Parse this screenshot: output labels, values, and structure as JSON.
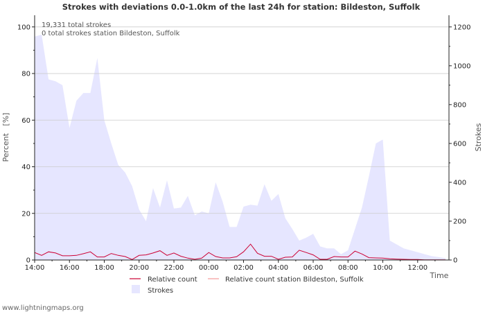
{
  "chart_data": {
    "type": "area",
    "title": "Strokes with deviations 0.0-1.0km of the last 24h for station: Bildeston, Suffolk",
    "xlabel": "Time",
    "ylabel_left": "Percent   [%]",
    "ylabel_right": "Strokes",
    "y_left_range": [
      0,
      105
    ],
    "y_right_range": [
      0,
      1260
    ],
    "left_ticks": [
      0,
      20,
      40,
      60,
      80,
      100
    ],
    "right_ticks": [
      0,
      200,
      400,
      600,
      800,
      1000,
      1200
    ],
    "x_range_hours": [
      14,
      37.8
    ],
    "x_tick_labels": [
      "14:00",
      "16:00",
      "18:00",
      "20:00",
      "22:00",
      "00:00",
      "02:00",
      "04:00",
      "06:00",
      "08:00",
      "10:00",
      "12:00"
    ],
    "annotations": [
      "19,331 total strokes",
      "0 total strokes station Bildeston, Suffolk"
    ],
    "legend": [
      "Relative count",
      "Relative count station Bildeston, Suffolk",
      "Strokes"
    ],
    "colors": {
      "strokes_fill": "#e6e6ff",
      "relative": "#cc0033",
      "relative_station": "#f59999",
      "grid": "#cccccc",
      "axis": "#222222"
    },
    "x_hours": [
      14.0,
      14.4,
      14.8,
      15.2,
      15.6,
      16.0,
      16.4,
      16.8,
      17.2,
      17.6,
      18.0,
      18.4,
      18.8,
      19.2,
      19.6,
      20.0,
      20.4,
      20.8,
      21.2,
      21.6,
      22.0,
      22.4,
      22.8,
      23.2,
      23.6,
      24.0,
      24.4,
      24.8,
      25.2,
      25.6,
      26.0,
      26.4,
      26.8,
      27.2,
      27.6,
      28.0,
      28.4,
      28.8,
      29.2,
      29.6,
      30.0,
      30.4,
      30.8,
      31.2,
      31.6,
      32.0,
      32.4,
      32.8,
      33.2,
      33.6,
      34.0,
      34.4,
      34.8,
      35.2,
      35.6,
      36.0,
      36.4,
      36.8,
      37.2,
      37.6
    ],
    "series": [
      {
        "name": "Strokes",
        "axis": "right",
        "values": [
          1150,
          1160,
          930,
          920,
          900,
          680,
          820,
          860,
          860,
          1040,
          720,
          600,
          490,
          450,
          380,
          260,
          200,
          370,
          270,
          410,
          265,
          270,
          330,
          230,
          250,
          240,
          400,
          300,
          170,
          170,
          275,
          285,
          280,
          390,
          305,
          340,
          215,
          160,
          100,
          115,
          135,
          70,
          60,
          60,
          30,
          50,
          160,
          270,
          430,
          600,
          620,
          100,
          80,
          60,
          50,
          40,
          30,
          20,
          15,
          10
        ]
      },
      {
        "name": "Relative count",
        "axis": "left",
        "values": [
          3.2,
          2.0,
          3.5,
          3.0,
          1.8,
          1.8,
          2.0,
          2.7,
          3.5,
          1.3,
          1.3,
          2.8,
          2.0,
          1.5,
          0.2,
          2.0,
          2.2,
          3.0,
          4.0,
          2.0,
          3.0,
          1.6,
          0.8,
          0.3,
          0.8,
          3.2,
          1.5,
          0.9,
          0.9,
          1.4,
          3.5,
          6.8,
          2.9,
          1.6,
          1.6,
          0.3,
          1.2,
          1.3,
          4.2,
          3.2,
          2.2,
          0.3,
          0.3,
          1.5,
          1.3,
          1.3,
          3.8,
          2.6,
          1.0,
          0.9,
          0.8,
          0.5,
          0.4,
          0.3,
          0.2,
          0.2,
          0.1,
          0.1,
          0.1,
          0.1
        ]
      },
      {
        "name": "Relative count station Bildeston, Suffolk",
        "axis": "left",
        "values": []
      }
    ]
  },
  "footer": "www.lightningmaps.org"
}
